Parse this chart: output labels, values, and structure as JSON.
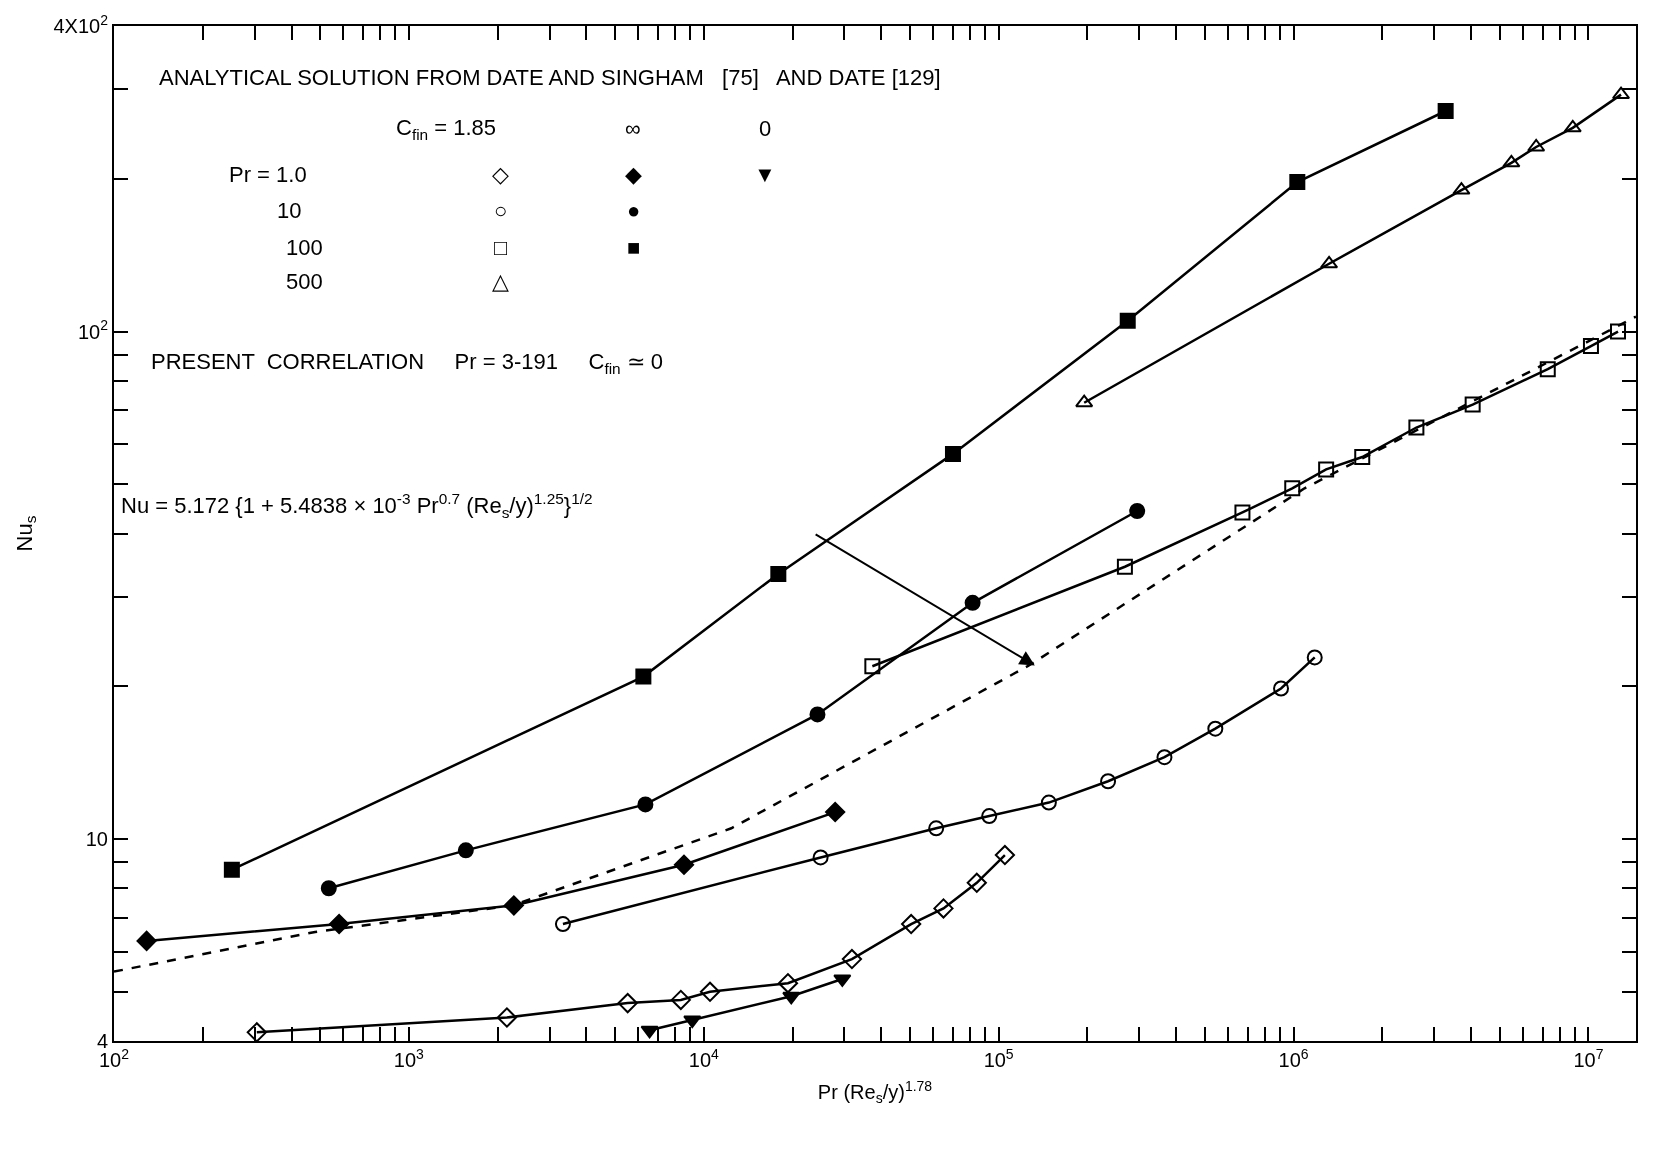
{
  "chart_data": {
    "type": "line",
    "xlabel": "Pr (Re$_{s}$/y)$^{1.78}$",
    "ylabel": "Nu$_{s}$",
    "log": "xy",
    "xlim": [
      100,
      14500000
    ],
    "ylim": [
      4,
      400
    ],
    "xticks": [
      {
        "value": 100,
        "label": "10$^{2}$"
      },
      {
        "value": 200,
        "label": null
      },
      {
        "value": 300,
        "label": null
      },
      {
        "value": 400,
        "label": null
      },
      {
        "value": 500,
        "label": null
      },
      {
        "value": 600,
        "label": null
      },
      {
        "value": 700,
        "label": null
      },
      {
        "value": 800,
        "label": null
      },
      {
        "value": 900,
        "label": null
      },
      {
        "value": 1000,
        "label": "10$^{3}$"
      },
      {
        "value": 2000,
        "label": null
      },
      {
        "value": 3000,
        "label": null
      },
      {
        "value": 4000,
        "label": null
      },
      {
        "value": 5000,
        "label": null
      },
      {
        "value": 6000,
        "label": null
      },
      {
        "value": 7000,
        "label": null
      },
      {
        "value": 8000,
        "label": null
      },
      {
        "value": 9000,
        "label": null
      },
      {
        "value": 10000,
        "label": "10$^{4}$"
      },
      {
        "value": 20000,
        "label": null
      },
      {
        "value": 30000,
        "label": null
      },
      {
        "value": 40000,
        "label": null
      },
      {
        "value": 50000,
        "label": null
      },
      {
        "value": 60000,
        "label": null
      },
      {
        "value": 70000,
        "label": null
      },
      {
        "value": 80000,
        "label": null
      },
      {
        "value": 90000,
        "label": null
      },
      {
        "value": 100000,
        "label": "10$^{5}$"
      },
      {
        "value": 200000,
        "label": null
      },
      {
        "value": 300000,
        "label": null
      },
      {
        "value": 400000,
        "label": null
      },
      {
        "value": 500000,
        "label": null
      },
      {
        "value": 600000,
        "label": null
      },
      {
        "value": 700000,
        "label": null
      },
      {
        "value": 800000,
        "label": null
      },
      {
        "value": 900000,
        "label": null
      },
      {
        "value": 1000000,
        "label": "10$^{6}$"
      },
      {
        "value": 2000000,
        "label": null
      },
      {
        "value": 3000000,
        "label": null
      },
      {
        "value": 4000000,
        "label": null
      },
      {
        "value": 5000000,
        "label": null
      },
      {
        "value": 6000000,
        "label": null
      },
      {
        "value": 7000000,
        "label": null
      },
      {
        "value": 8000000,
        "label": null
      },
      {
        "value": 9000000,
        "label": null
      },
      {
        "value": 10000000,
        "label": "10$^{7}$"
      }
    ],
    "yticks": [
      4,
      {
        "value": 5,
        "label": null
      },
      {
        "value": 6,
        "label": null
      },
      {
        "value": 7,
        "label": null
      },
      {
        "value": 8,
        "label": null
      },
      {
        "value": 9,
        "label": null
      },
      10,
      {
        "value": 20,
        "label": null
      },
      {
        "value": 30,
        "label": null
      },
      {
        "value": 40,
        "label": null
      },
      {
        "value": 50,
        "label": null
      },
      {
        "value": 60,
        "label": null
      },
      {
        "value": 70,
        "label": null
      },
      {
        "value": 80,
        "label": null
      },
      {
        "value": 90,
        "label": null
      },
      {
        "value": 100,
        "label": "10$^{2}$"
      },
      {
        "value": 200,
        "label": null
      },
      {
        "value": 300,
        "label": null
      },
      {
        "value": 400,
        "label": "4X10$^{2}$"
      }
    ],
    "series": [
      {
        "color": "#000000",
        "marker": "square",
        "x": [
          251,
          6240,
          17900,
          70000,
          274000,
          1030000,
          3280000
        ],
        "values": [
          8.7,
          20.9,
          33.3,
          57.4,
          105,
          197,
          272
        ]
      },
      {
        "color": "#000000",
        "marker": "triangle-open",
        "x": [
          195000,
          1320000,
          3710000,
          5480000,
          6650000,
          8850000,
          12900000
        ],
        "values": [
          72.4,
          136,
          190,
          215,
          231,
          252,
          293
        ]
      },
      {
        "color": "#000000",
        "marker": "square-open",
        "x": [
          37300,
          268000,
          671000,
          990000,
          1290000,
          1710000,
          2610000,
          4050000,
          7280000,
          10200000,
          12600000
        ],
        "values": [
          21.9,
          34.4,
          44,
          49.1,
          53.5,
          56.6,
          64.7,
          71.8,
          84.3,
          93.6,
          100
        ]
      },
      {
        "color": "#000000",
        "marker": "circle",
        "x": [
          535,
          1560,
          6340,
          24300,
          81600,
          295000
        ],
        "values": [
          8.0,
          9.5,
          11.7,
          17.6,
          29.2,
          44.3
        ]
      },
      {
        "color": "#000000",
        "marker": "circle-open",
        "x": [
          3330,
          24900,
          61400,
          92900,
          148000,
          235000,
          365000,
          543000,
          907000,
          1180000
        ],
        "values": [
          6.8,
          9.2,
          10.5,
          11.1,
          11.8,
          13.0,
          14.5,
          16.5,
          19.8,
          22.8
        ]
      },
      {
        "color": "#000000",
        "marker": "diamond",
        "x": [
          129,
          580,
          2270,
          8570,
          27900
        ],
        "values": [
          6.3,
          6.8,
          7.4,
          8.9,
          11.3
        ]
      },
      {
        "color": "#000000",
        "marker": "diamond-open",
        "x": [
          305,
          2150,
          5520,
          8360,
          10500,
          19300,
          31800,
          50500,
          65000,
          84300,
          105000
        ],
        "values": [
          4.16,
          4.45,
          4.75,
          4.82,
          5.0,
          5.2,
          5.8,
          6.8,
          7.3,
          8.2,
          9.3
        ]
      },
      {
        "color": "#000000",
        "marker": "triangle-down",
        "x": [
          6550,
          9140,
          19800,
          29500
        ],
        "values": [
          4.2,
          4.4,
          4.9,
          5.3
        ]
      },
      {
        "color": "#000000",
        "marker": "none",
        "line_style": "dashed",
        "x": [
          100,
          481,
          2250,
          12400,
          127000,
          1090000,
          14500000
        ],
        "values": [
          5.48,
          6.56,
          7.4,
          10.5,
          22.0,
          49.1,
          107
        ]
      }
    ],
    "annotations": [
      "ANALYTICAL SOLUTION FROM DATE AND SINGHAM   [75]   AND DATE [129]",
      "C$_{fin}$ = 1.85",
      "∞",
      "0",
      "Pr = 1.0",
      "10",
      "100",
      "500",
      "◇",
      "◆",
      "▼",
      "○",
      "●",
      "□",
      "■",
      "△",
      "PRESENT  CORRELATION     Pr = 3-191     C$_{fin}$ ≃ 0",
      "Nu = 5.172 {1 + 5.4838 × 10$^{-3}$ Pr$^{0.7}$ (Re$_{s}$/y)$^{1.25}$}$^{1/2}$"
    ]
  }
}
